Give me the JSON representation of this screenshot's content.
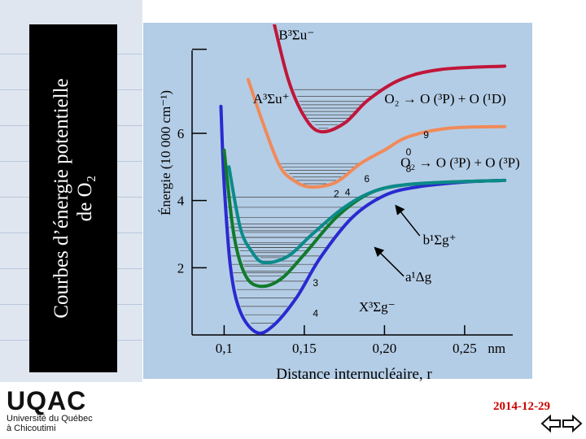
{
  "slide": {
    "title_line1": "Courbes d’énergie potentielle",
    "title_line2": "de O₂",
    "date": "2014-12-29",
    "logo_text": "UQAC",
    "logo_subtitle_1": "Université du Québec",
    "logo_subtitle_2": "à Chicoutimi"
  },
  "colors": {
    "panel": "#b4cde6",
    "title_box": "#000000",
    "date": "#cc0000",
    "X3Sg": "#2a2ad0",
    "a1Dg": "#117a2c",
    "b1Sg": "#0c8a8a",
    "A3Su": "#f08a5a",
    "B3Su": "#c0163a"
  },
  "chart_data": {
    "type": "line",
    "xlabel": "Distance internucléaire, r",
    "ylabel": "Énergie  (10 000 cm⁻¹)",
    "x_unit": "nm",
    "x_ticks": [
      "0,1",
      "0,15",
      "0,20",
      "0,25"
    ],
    "y_ticks": [
      "2",
      "4",
      "6"
    ],
    "xlim": [
      0.08,
      0.28
    ],
    "ylim": [
      0,
      9
    ],
    "series": [
      {
        "name": "X³Σg⁻",
        "color": "#2a2ad0",
        "points": [
          [
            0.098,
            6.8
          ],
          [
            0.1,
            4.5
          ],
          [
            0.104,
            2.0
          ],
          [
            0.11,
            0.7
          ],
          [
            0.12,
            0.08
          ],
          [
            0.13,
            0.25
          ],
          [
            0.145,
            1.1
          ],
          [
            0.16,
            2.3
          ],
          [
            0.18,
            3.5
          ],
          [
            0.2,
            4.15
          ],
          [
            0.22,
            4.4
          ],
          [
            0.25,
            4.55
          ],
          [
            0.275,
            4.6
          ]
        ]
      },
      {
        "name": "a¹Δg",
        "color": "#117a2c",
        "points": [
          [
            0.1,
            5.5
          ],
          [
            0.106,
            3.0
          ],
          [
            0.113,
            1.8
          ],
          [
            0.122,
            1.45
          ],
          [
            0.135,
            1.65
          ],
          [
            0.15,
            2.4
          ],
          [
            0.17,
            3.5
          ],
          [
            0.19,
            4.2
          ],
          [
            0.21,
            4.45
          ],
          [
            0.24,
            4.55
          ],
          [
            0.275,
            4.6
          ]
        ]
      },
      {
        "name": "b¹Σg⁺",
        "color": "#0c8a8a",
        "points": [
          [
            0.103,
            5.0
          ],
          [
            0.11,
            3.2
          ],
          [
            0.117,
            2.5
          ],
          [
            0.125,
            2.15
          ],
          [
            0.14,
            2.35
          ],
          [
            0.155,
            3.0
          ],
          [
            0.175,
            3.8
          ],
          [
            0.195,
            4.3
          ],
          [
            0.22,
            4.5
          ],
          [
            0.275,
            4.6
          ]
        ]
      },
      {
        "name": "A³Σu⁺",
        "color": "#f08a5a",
        "points": [
          [
            0.115,
            7.6
          ],
          [
            0.125,
            6.2
          ],
          [
            0.135,
            5.0
          ],
          [
            0.145,
            4.55
          ],
          [
            0.155,
            4.4
          ],
          [
            0.17,
            4.55
          ],
          [
            0.185,
            5.1
          ],
          [
            0.2,
            5.5
          ],
          [
            0.215,
            5.9
          ],
          [
            0.24,
            6.15
          ],
          [
            0.275,
            6.2
          ]
        ]
      },
      {
        "name": "B³Σu⁻",
        "color": "#c0163a",
        "points": [
          [
            0.13,
            9.5
          ],
          [
            0.14,
            7.6
          ],
          [
            0.15,
            6.5
          ],
          [
            0.16,
            6.05
          ],
          [
            0.175,
            6.3
          ],
          [
            0.19,
            7.0
          ],
          [
            0.21,
            7.6
          ],
          [
            0.235,
            7.9
          ],
          [
            0.275,
            8.0
          ]
        ]
      }
    ],
    "annotations": [
      {
        "text": "B³Σu⁻",
        "x": 0.134,
        "y": 8.8
      },
      {
        "text": "A³Σu⁺",
        "x": 0.118,
        "y": 6.9
      },
      {
        "text": "b¹Σg⁺",
        "x": 0.224,
        "y": 2.7
      },
      {
        "text": "a¹Δg",
        "x": 0.213,
        "y": 1.6
      },
      {
        "text": "X³Σg⁻",
        "x": 0.184,
        "y": 0.7
      },
      {
        "text": "O₂ → O (³P) + O (¹D)",
        "x": 0.2,
        "y": 6.9
      },
      {
        "text": "O₂ → O (³P) + O (³P)",
        "x": 0.21,
        "y": 5.0
      }
    ],
    "vibrational_labels": [
      {
        "text": "9",
        "x": 0.226,
        "y": 5.85
      },
      {
        "text": "0",
        "x": 0.215,
        "y": 5.35
      },
      {
        "text": "8",
        "x": 0.215,
        "y": 4.85
      },
      {
        "text": "6",
        "x": 0.189,
        "y": 4.55
      },
      {
        "text": "4",
        "x": 0.177,
        "y": 4.15
      },
      {
        "text": "2",
        "x": 0.17,
        "y": 4.1
      },
      {
        "text": "3",
        "x": 0.157,
        "y": 1.45
      },
      {
        "text": "4",
        "x": 0.157,
        "y": 0.55
      }
    ]
  }
}
